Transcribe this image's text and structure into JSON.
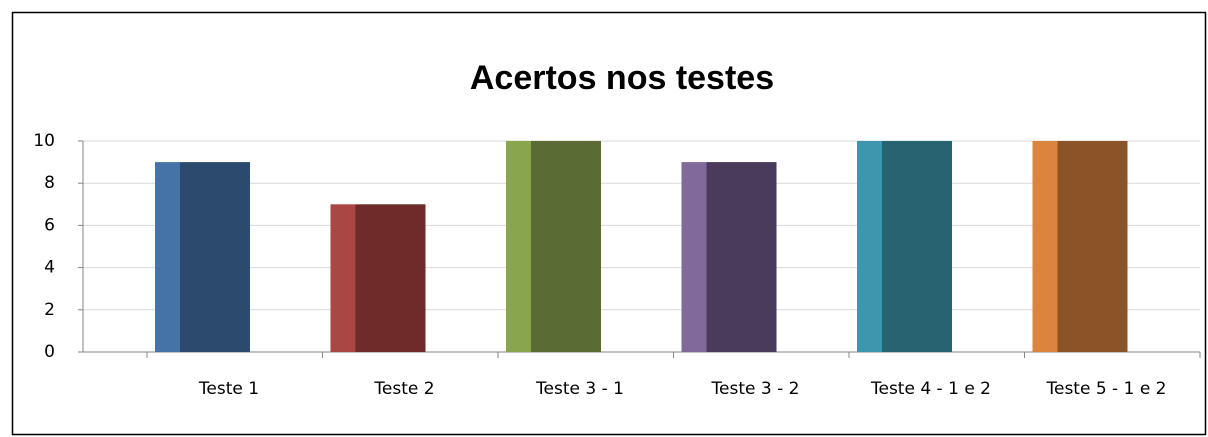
{
  "chart_data": {
    "type": "bar",
    "title": "Acertos nos testes",
    "categories": [
      "Teste 1",
      "Teste 2",
      "Teste 3 - 1",
      "Teste 3 - 2",
      "Teste 4 - 1 e 2",
      "Teste 5 - 1 e 2"
    ],
    "values": [
      9,
      7,
      10,
      9,
      10,
      10
    ],
    "colors": [
      "#2c4a6e",
      "#6e2b2a",
      "#5a6b33",
      "#4a3a5c",
      "#256470",
      "#8b5328"
    ],
    "side_colors": [
      "#4572a7",
      "#aa4643",
      "#89a54e",
      "#80699b",
      "#3d96ae",
      "#db843d"
    ],
    "ylim": [
      0,
      10
    ],
    "yticks": [
      0,
      2,
      4,
      6,
      8,
      10
    ],
    "grid": true
  }
}
